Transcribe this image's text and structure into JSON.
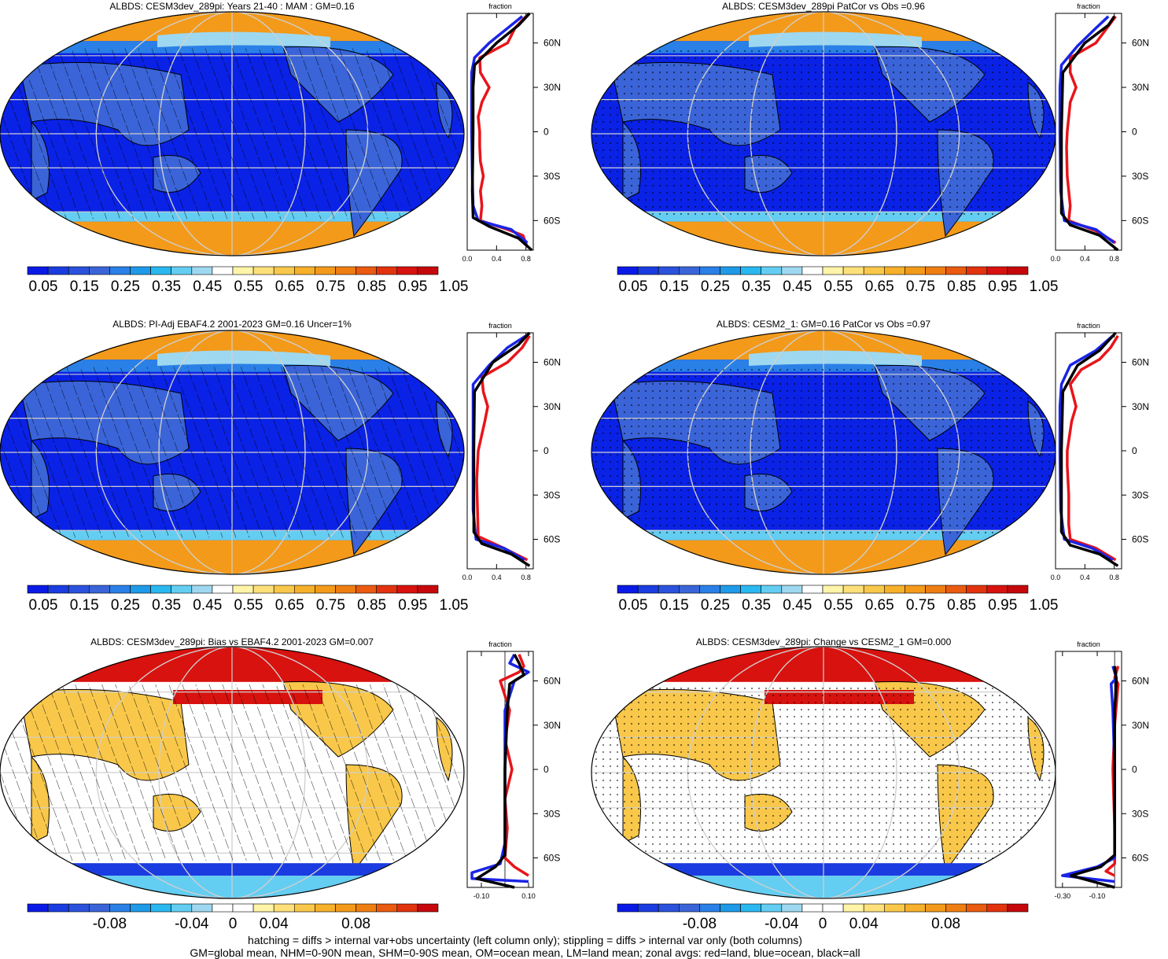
{
  "notes": {
    "line1": "hatching = diffs > internal var+obs uncertainty (left column only); stippling = diffs > internal var only (both columns)",
    "line2": "GM=global mean, NHM=0-90N mean, SHM=0-90S mean, OM=ocean mean, LM=land mean; zonal avgs: red=land, blue=ocean, black=all"
  },
  "colors": {
    "land": "#e8141a",
    "ocean": "#1a24e6",
    "all": "#000000",
    "map_grid": "#cfcfcf"
  },
  "colorbars": {
    "absolute": {
      "colors": [
        "#0a1ae6",
        "#1a3ce0",
        "#2a52dc",
        "#3a64d8",
        "#2a80e6",
        "#1e9ae8",
        "#2ab8f0",
        "#64cdf2",
        "#9ed8f0",
        "#ffffff",
        "#fff4a8",
        "#fde07a",
        "#f9c84a",
        "#f6b02a",
        "#f39a1a",
        "#ef7e12",
        "#ea5a10",
        "#e3320e",
        "#d8120e",
        "#c6080c"
      ],
      "labels": [
        "0.05",
        "0.15",
        "0.25",
        "0.35",
        "0.45",
        "0.55",
        "0.65",
        "0.75",
        "0.85",
        "0.95",
        "1.05"
      ]
    },
    "difference": {
      "colors": [
        "#0a1ae6",
        "#1a3ce0",
        "#2a52dc",
        "#3a64d8",
        "#2a80e6",
        "#1e9ae8",
        "#2ab8f0",
        "#64cdf2",
        "#9ed8f0",
        "#ffffff",
        "#ffffff",
        "#fff4a8",
        "#fde07a",
        "#f9c84a",
        "#f6b02a",
        "#f39a1a",
        "#ef7e12",
        "#ea5a10",
        "#e3320e",
        "#c6080c"
      ],
      "labels": [
        "-0.08",
        "-0.04",
        "0",
        "0.04",
        "0.08"
      ]
    }
  },
  "panels": [
    {
      "title": "ALBDS: CESM3dev_289pi: Years 21-40 : MAM : GM=0.16",
      "colorbar": "absolute",
      "overlay": "hatch",
      "anom": false
    },
    {
      "title": "ALBDS: CESM3dev_289pi PatCor vs Obs =0.96",
      "colorbar": "absolute",
      "overlay": "stipple",
      "anom": false
    },
    {
      "title": "ALBDS: PI-Adj EBAF4.2 2001-2023 GM=0.16 Uncer=1%",
      "colorbar": "absolute",
      "overlay": "hatch",
      "anom": false
    },
    {
      "title": "ALBDS: CESM2_1: GM=0.16 PatCor vs Obs =0.97",
      "colorbar": "absolute",
      "overlay": "stipple",
      "anom": false
    },
    {
      "title": "ALBDS: CESM3dev_289pi: Bias vs EBAF4.2 2001-2023 GM=0.007",
      "colorbar": "difference",
      "overlay": "hatch",
      "anom": true
    },
    {
      "title": "ALBDS: CESM3dev_289pi: Change vs CESM2_1 GM=0.000",
      "colorbar": "difference",
      "overlay": "stipple",
      "anom": true
    }
  ],
  "zonal": {
    "top_label": "fraction",
    "lat_ticks": [
      "60N",
      "30N",
      "0",
      "30S",
      "60S"
    ],
    "lat_values": [
      60,
      30,
      0,
      -30,
      -60
    ],
    "abs_axis": {
      "xlim": [
        0,
        0.9
      ],
      "ticks": [
        0.0,
        0.4,
        0.8
      ],
      "labels": [
        "0.0",
        "0.4",
        "0.8"
      ]
    },
    "bias_axis": {
      "xlim": [
        -0.16,
        0.12
      ],
      "ticks": [
        -0.1,
        0.1
      ],
      "labels": [
        "-0.10",
        "0.10"
      ]
    },
    "change_axis": {
      "xlim": [
        -0.34,
        0.04
      ],
      "ticks": [
        -0.3,
        -0.1
      ],
      "labels": [
        "-0.30",
        "-0.10"
      ]
    }
  },
  "chart_data": [
    {
      "type": "line",
      "title": "",
      "xlabel": "fraction",
      "ylabel": "",
      "xlim": [
        0,
        0.9
      ],
      "ylim": [
        -80,
        80
      ],
      "series": [
        {
          "name": "land",
          "color": "#e8141a",
          "points": [
            [
              0.82,
              -78
            ],
            [
              0.76,
              -70
            ],
            [
              0.55,
              -66
            ],
            [
              0.18,
              -60
            ],
            [
              0.2,
              -50
            ],
            [
              0.18,
              -40
            ],
            [
              0.22,
              -30
            ],
            [
              0.18,
              -20
            ],
            [
              0.17,
              -10
            ],
            [
              0.17,
              0
            ],
            [
              0.15,
              10
            ],
            [
              0.2,
              20
            ],
            [
              0.3,
              30
            ],
            [
              0.18,
              40
            ],
            [
              0.17,
              50
            ],
            [
              0.55,
              60
            ],
            [
              0.65,
              70
            ],
            [
              0.8,
              78
            ]
          ]
        },
        {
          "name": "ocean",
          "color": "#1a24e6",
          "points": [
            [
              0.82,
              -75
            ],
            [
              0.6,
              -66
            ],
            [
              0.15,
              -60
            ],
            [
              0.08,
              -50
            ],
            [
              0.07,
              -30
            ],
            [
              0.06,
              0
            ],
            [
              0.06,
              30
            ],
            [
              0.06,
              40
            ],
            [
              0.1,
              50
            ],
            [
              0.3,
              60
            ],
            [
              0.55,
              70
            ],
            [
              0.75,
              78
            ]
          ]
        },
        {
          "name": "all",
          "color": "#000000",
          "points": [
            [
              0.88,
              -80
            ],
            [
              0.7,
              -72
            ],
            [
              0.3,
              -64
            ],
            [
              0.08,
              -58
            ],
            [
              0.07,
              -40
            ],
            [
              0.08,
              0
            ],
            [
              0.08,
              30
            ],
            [
              0.1,
              45
            ],
            [
              0.4,
              60
            ],
            [
              0.7,
              72
            ],
            [
              0.85,
              80
            ]
          ]
        }
      ]
    },
    {
      "type": "line",
      "title": "",
      "xlabel": "fraction",
      "ylabel": "",
      "xlim": [
        0,
        0.9
      ],
      "ylim": [
        -80,
        80
      ],
      "series": [
        {
          "name": "land",
          "color": "#e8141a",
          "points": [
            [
              0.82,
              -75
            ],
            [
              0.55,
              -67
            ],
            [
              0.18,
              -60
            ],
            [
              0.2,
              -50
            ],
            [
              0.16,
              -30
            ],
            [
              0.15,
              -10
            ],
            [
              0.16,
              0
            ],
            [
              0.2,
              20
            ],
            [
              0.28,
              30
            ],
            [
              0.2,
              40
            ],
            [
              0.2,
              50
            ],
            [
              0.55,
              60
            ],
            [
              0.7,
              70
            ],
            [
              0.82,
              78
            ]
          ]
        },
        {
          "name": "ocean",
          "color": "#1a24e6",
          "points": [
            [
              0.8,
              -75
            ],
            [
              0.55,
              -66
            ],
            [
              0.12,
              -60
            ],
            [
              0.07,
              -40
            ],
            [
              0.06,
              0
            ],
            [
              0.06,
              30
            ],
            [
              0.08,
              45
            ],
            [
              0.3,
              58
            ],
            [
              0.55,
              70
            ],
            [
              0.72,
              78
            ]
          ]
        },
        {
          "name": "all",
          "color": "#000000",
          "points": [
            [
              0.85,
              -80
            ],
            [
              0.6,
              -70
            ],
            [
              0.2,
              -63
            ],
            [
              0.08,
              -55
            ],
            [
              0.08,
              0
            ],
            [
              0.1,
              40
            ],
            [
              0.4,
              60
            ],
            [
              0.72,
              72
            ],
            [
              0.8,
              78
            ]
          ]
        }
      ]
    },
    {
      "type": "line",
      "title": "",
      "xlabel": "fraction",
      "ylabel": "",
      "xlim": [
        0,
        0.9
      ],
      "ylim": [
        -80,
        80
      ],
      "series": [
        {
          "name": "land",
          "color": "#e8141a",
          "points": [
            [
              0.82,
              -74
            ],
            [
              0.5,
              -66
            ],
            [
              0.15,
              -58
            ],
            [
              0.14,
              -40
            ],
            [
              0.13,
              -20
            ],
            [
              0.15,
              0
            ],
            [
              0.24,
              20
            ],
            [
              0.28,
              30
            ],
            [
              0.22,
              40
            ],
            [
              0.2,
              50
            ],
            [
              0.55,
              60
            ],
            [
              0.75,
              70
            ],
            [
              0.85,
              78
            ]
          ]
        },
        {
          "name": "ocean",
          "color": "#1a24e6",
          "points": [
            [
              0.78,
              -74
            ],
            [
              0.5,
              -66
            ],
            [
              0.12,
              -60
            ],
            [
              0.08,
              -40
            ],
            [
              0.08,
              0
            ],
            [
              0.08,
              30
            ],
            [
              0.08,
              45
            ],
            [
              0.3,
              58
            ],
            [
              0.55,
              70
            ],
            [
              0.8,
              78
            ]
          ]
        },
        {
          "name": "all",
          "color": "#000000",
          "points": [
            [
              0.85,
              -78
            ],
            [
              0.6,
              -70
            ],
            [
              0.2,
              -63
            ],
            [
              0.09,
              -55
            ],
            [
              0.09,
              0
            ],
            [
              0.1,
              40
            ],
            [
              0.35,
              60
            ],
            [
              0.7,
              72
            ],
            [
              0.85,
              80
            ]
          ]
        }
      ]
    },
    {
      "type": "line",
      "title": "",
      "xlabel": "fraction",
      "ylabel": "",
      "xlim": [
        0,
        0.9
      ],
      "ylim": [
        -80,
        80
      ],
      "series": [
        {
          "name": "land",
          "color": "#e8141a",
          "points": [
            [
              0.82,
              -74
            ],
            [
              0.55,
              -66
            ],
            [
              0.2,
              -60
            ],
            [
              0.18,
              -50
            ],
            [
              0.18,
              -30
            ],
            [
              0.16,
              -10
            ],
            [
              0.16,
              0
            ],
            [
              0.22,
              20
            ],
            [
              0.28,
              30
            ],
            [
              0.2,
              45
            ],
            [
              0.35,
              55
            ],
            [
              0.6,
              62
            ],
            [
              0.75,
              70
            ],
            [
              0.85,
              78
            ]
          ]
        },
        {
          "name": "ocean",
          "color": "#1a24e6",
          "points": [
            [
              0.78,
              -74
            ],
            [
              0.5,
              -66
            ],
            [
              0.12,
              -60
            ],
            [
              0.07,
              -40
            ],
            [
              0.06,
              0
            ],
            [
              0.06,
              30
            ],
            [
              0.08,
              45
            ],
            [
              0.2,
              58
            ],
            [
              0.55,
              68
            ],
            [
              0.78,
              78
            ]
          ]
        },
        {
          "name": "all",
          "color": "#000000",
          "points": [
            [
              0.85,
              -78
            ],
            [
              0.6,
              -70
            ],
            [
              0.2,
              -64
            ],
            [
              0.08,
              -55
            ],
            [
              0.08,
              0
            ],
            [
              0.1,
              40
            ],
            [
              0.3,
              58
            ],
            [
              0.6,
              68
            ],
            [
              0.82,
              80
            ]
          ]
        }
      ]
    },
    {
      "type": "line",
      "title": "",
      "xlabel": "fraction",
      "ylabel": "",
      "xlim": [
        -0.16,
        0.12
      ],
      "ylim": [
        -80,
        80
      ],
      "series": [
        {
          "name": "land",
          "color": "#e8141a",
          "points": [
            [
              0.1,
              -72
            ],
            [
              0.04,
              -66
            ],
            [
              0.0,
              -60
            ],
            [
              0.01,
              -40
            ],
            [
              0.0,
              -20
            ],
            [
              0.03,
              0
            ],
            [
              0.0,
              20
            ],
            [
              0.02,
              40
            ],
            [
              -0.02,
              60
            ],
            [
              0.06,
              66
            ],
            [
              0.08,
              70
            ],
            [
              0.06,
              78
            ]
          ]
        },
        {
          "name": "ocean",
          "color": "#1a24e6",
          "points": [
            [
              0.1,
              -76
            ],
            [
              -0.14,
              -74
            ],
            [
              -0.14,
              -70
            ],
            [
              -0.02,
              -64
            ],
            [
              0.0,
              -50
            ],
            [
              0.0,
              0
            ],
            [
              0.0,
              40
            ],
            [
              0.04,
              60
            ],
            [
              0.1,
              66
            ],
            [
              0.02,
              72
            ],
            [
              0.04,
              78
            ]
          ]
        },
        {
          "name": "all",
          "color": "#000000",
          "points": [
            [
              0.04,
              -80
            ],
            [
              -0.12,
              -74
            ],
            [
              -0.04,
              -66
            ],
            [
              0.0,
              -58
            ],
            [
              0.0,
              0
            ],
            [
              0.01,
              40
            ],
            [
              0.02,
              58
            ],
            [
              0.08,
              64
            ],
            [
              0.06,
              72
            ],
            [
              0.04,
              78
            ]
          ]
        }
      ]
    },
    {
      "type": "line",
      "title": "",
      "xlabel": "fraction",
      "ylabel": "",
      "xlim": [
        -0.34,
        0.04
      ],
      "ylim": [
        -80,
        80
      ],
      "series": [
        {
          "name": "land",
          "color": "#e8141a",
          "points": [
            [
              0.0,
              -72
            ],
            [
              -0.05,
              -69
            ],
            [
              0.0,
              -64
            ],
            [
              0.0,
              -40
            ],
            [
              -0.01,
              0
            ],
            [
              0.0,
              30
            ],
            [
              0.02,
              58
            ],
            [
              0.0,
              62
            ],
            [
              0.02,
              70
            ]
          ]
        },
        {
          "name": "ocean",
          "color": "#1a24e6",
          "points": [
            [
              0.0,
              -76
            ],
            [
              -0.3,
              -72
            ],
            [
              -0.1,
              -66
            ],
            [
              0.0,
              -60
            ],
            [
              0.0,
              0
            ],
            [
              -0.01,
              40
            ],
            [
              -0.02,
              58
            ],
            [
              0.01,
              62
            ],
            [
              -0.01,
              70
            ]
          ]
        },
        {
          "name": "all",
          "color": "#000000",
          "points": [
            [
              0.0,
              -80
            ],
            [
              -0.25,
              -72
            ],
            [
              -0.08,
              -66
            ],
            [
              0.0,
              -58
            ],
            [
              0.0,
              0
            ],
            [
              0.0,
              40
            ],
            [
              0.01,
              60
            ],
            [
              0.0,
              70
            ]
          ]
        }
      ]
    }
  ]
}
